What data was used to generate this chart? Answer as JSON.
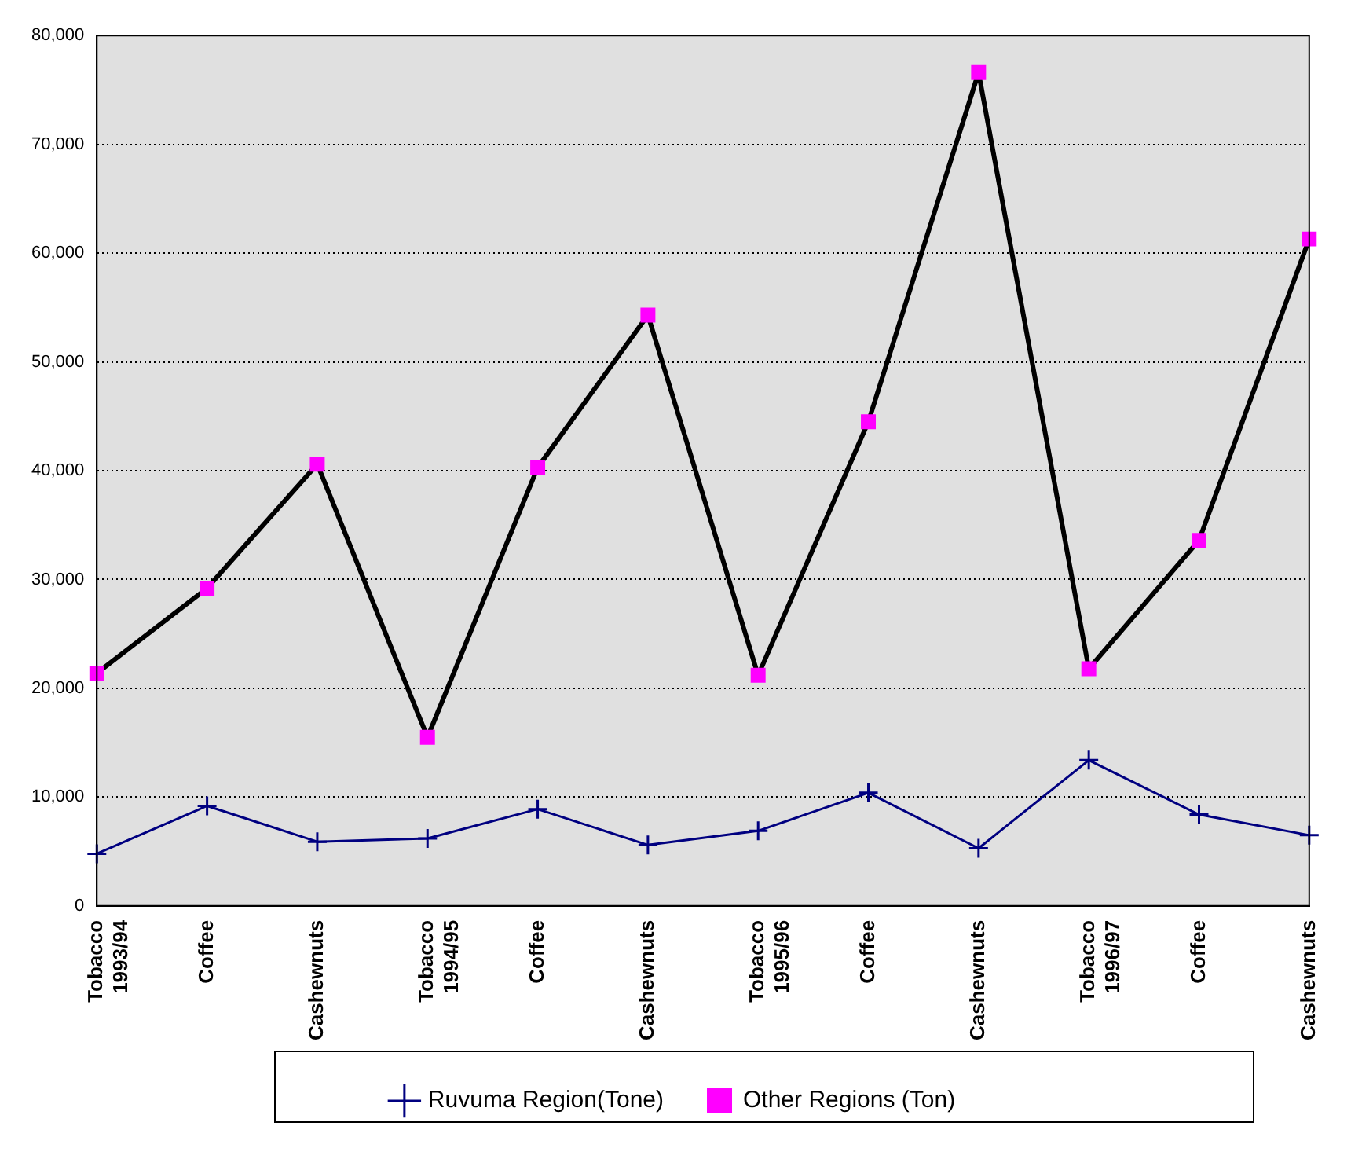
{
  "chart_data": {
    "type": "line",
    "categories": [
      "Tobacco\n1993/94",
      "Coffee",
      "Cashewnuts",
      "Tobacco\n1994/95",
      "Coffee",
      "Cashewnuts",
      "Tobacco\n1995/96",
      "Coffee",
      "Cashewnuts",
      "Tobacco\n1996/97",
      "Coffee",
      "Cashewnuts"
    ],
    "series": [
      {
        "name": "Ruvuma Region(Tone)",
        "color": "#000080",
        "marker": "cross",
        "values": [
          4800,
          9200,
          5900,
          6200,
          8900,
          5600,
          6900,
          10400,
          5300,
          13400,
          8400,
          6500
        ]
      },
      {
        "name": "Other Regions (Ton)",
        "color": "#000000",
        "marker": "square",
        "colors": [
          "#ff00ff",
          "#ff00ff",
          "#ff00ff",
          "#ff00ff",
          "#ff00ff",
          "#ff00ff",
          "#ff00ff",
          "#ff00ff",
          "#ff00ff",
          "#ff00ff",
          "#ff00ff",
          "#ff00ff"
        ],
        "values": [
          21400,
          29200,
          40600,
          15500,
          40300,
          54300,
          21200,
          44500,
          76600,
          21800,
          33600,
          61300
        ]
      }
    ],
    "ylim": [
      0,
      80000
    ],
    "yticks": [
      0,
      {
        "value": 10000,
        "label": "10,000"
      },
      {
        "value": 20000,
        "label": "20,000"
      },
      {
        "value": 30000,
        "label": "30,000"
      },
      {
        "value": 40000,
        "label": "40,000"
      },
      {
        "value": 50000,
        "label": "50,000"
      },
      {
        "value": 60000,
        "label": "60,000"
      },
      {
        "value": 70000,
        "label": "70,000"
      },
      {
        "value": 80000,
        "label": "80,000"
      }
    ],
    "grid": "y",
    "legend": "bottom",
    "line_style": "solid"
  }
}
